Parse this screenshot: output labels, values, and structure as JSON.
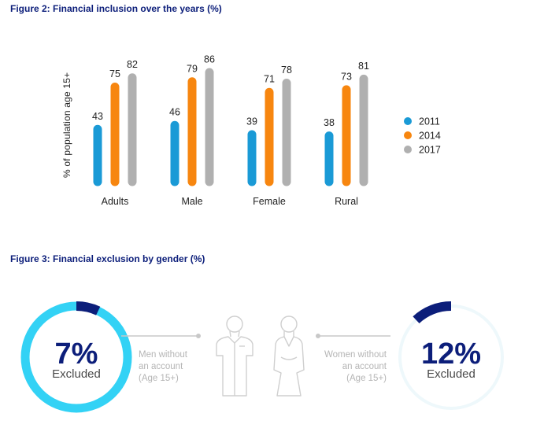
{
  "fig2": {
    "title": "Figure 2: Financial inclusion over the years (%)"
  },
  "fig3": {
    "title": "Figure 3: Financial exclusion by gender (%)",
    "men": {
      "value": 7,
      "value_text": "7%",
      "label": "Excluded",
      "note_lines": [
        "Men without",
        "an account",
        "(Age 15+)"
      ]
    },
    "women": {
      "value": 12,
      "value_text": "12%",
      "label": "Excluded",
      "note_lines": [
        "Women without",
        "an account",
        "(Age 15+)"
      ]
    }
  },
  "colors": {
    "title": "#0c1e7a",
    "s2011": "#1a9ad6",
    "s2014": "#f7860f",
    "s2017": "#b0b0b0",
    "ring_light": "#33d2f5",
    "ring_dark": "#0c1e7a",
    "ring_faint": "#eef8fb",
    "grey_line": "#c8c8c8"
  },
  "chart_data": {
    "type": "bar",
    "title": "Figure 2: Financial inclusion over the years (%)",
    "xlabel": "",
    "ylabel": "% of population age 15+",
    "categories": [
      "Adults",
      "Male",
      "Female",
      "Rural"
    ],
    "series": [
      {
        "name": "2011",
        "values": [
          43,
          46,
          39,
          38
        ]
      },
      {
        "name": "2014",
        "values": [
          75,
          79,
          71,
          73
        ]
      },
      {
        "name": "2017",
        "values": [
          82,
          86,
          78,
          81
        ]
      }
    ],
    "ylim": [
      0,
      100
    ],
    "grid": false,
    "legend_position": "right"
  }
}
